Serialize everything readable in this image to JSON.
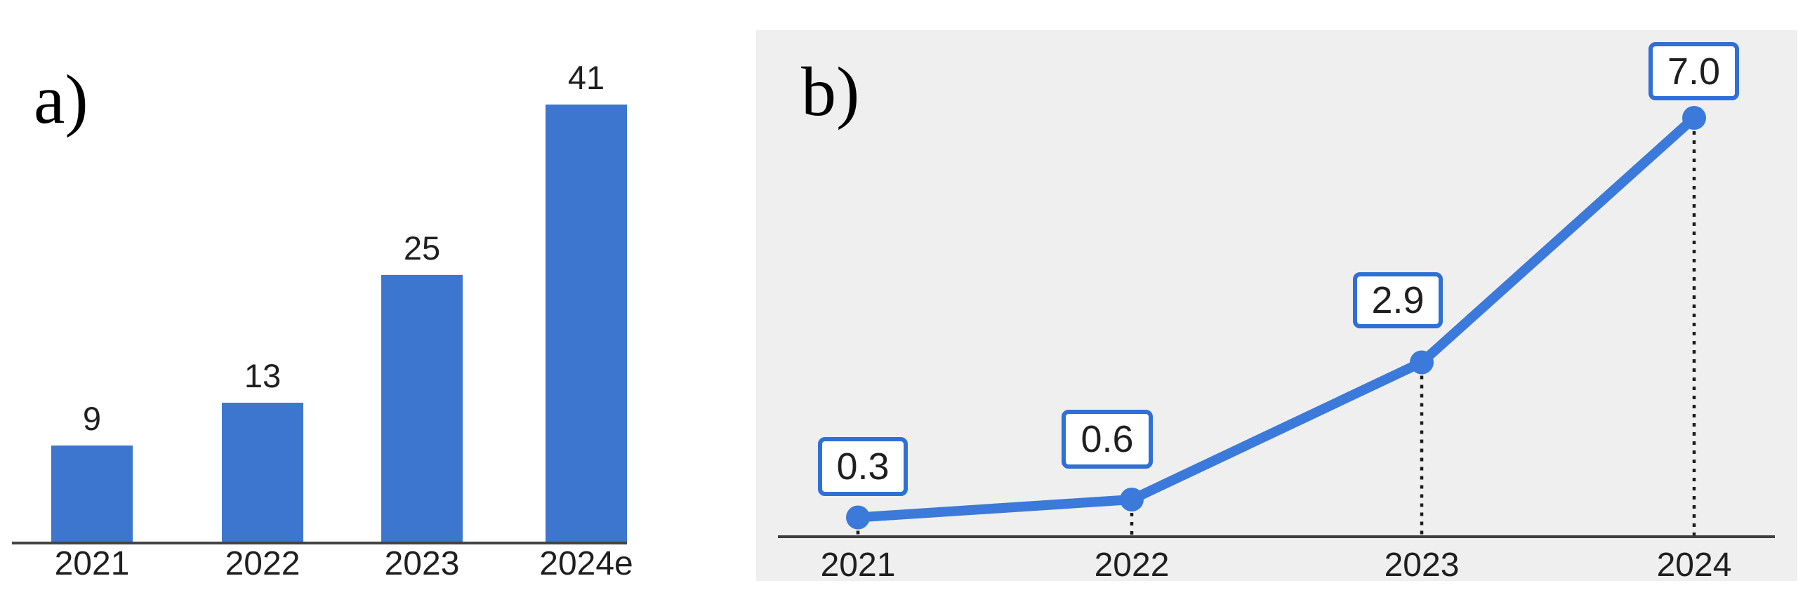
{
  "chart_data": [
    {
      "type": "bar",
      "panel_label": "a)",
      "categories": [
        "2021",
        "2022",
        "2023",
        "2024e"
      ],
      "values": [
        9,
        13,
        25,
        41
      ],
      "data_labels": [
        "9",
        "13",
        "25",
        "41"
      ],
      "title": "",
      "xlabel": "",
      "ylabel": "",
      "ylim": [
        0,
        45
      ],
      "grid": false,
      "legend_position": "none",
      "bar_color": "#3d76cf",
      "axis_color": "#434343",
      "label_color": "#1f1f1f"
    },
    {
      "type": "line",
      "panel_label": "b)",
      "categories": [
        "2021",
        "2022",
        "2023",
        "2024"
      ],
      "values": [
        0.3,
        0.6,
        2.9,
        7.0
      ],
      "data_labels": [
        "0.3",
        "0.6",
        "2.9",
        "7.0"
      ],
      "title": "",
      "xlabel": "",
      "ylabel": "",
      "ylim": [
        0,
        7.8
      ],
      "grid": false,
      "legend_position": "none",
      "line_color": "#3b79da",
      "marker_color": "#3b79da",
      "background": "#efefef",
      "axis_color": "#3f3f3f",
      "dotted_line_color": "#1c1c1c",
      "label_box_border": "#2f6fd6",
      "label_box_background": "#ffffff",
      "label_color": "#1f1f1f"
    }
  ]
}
